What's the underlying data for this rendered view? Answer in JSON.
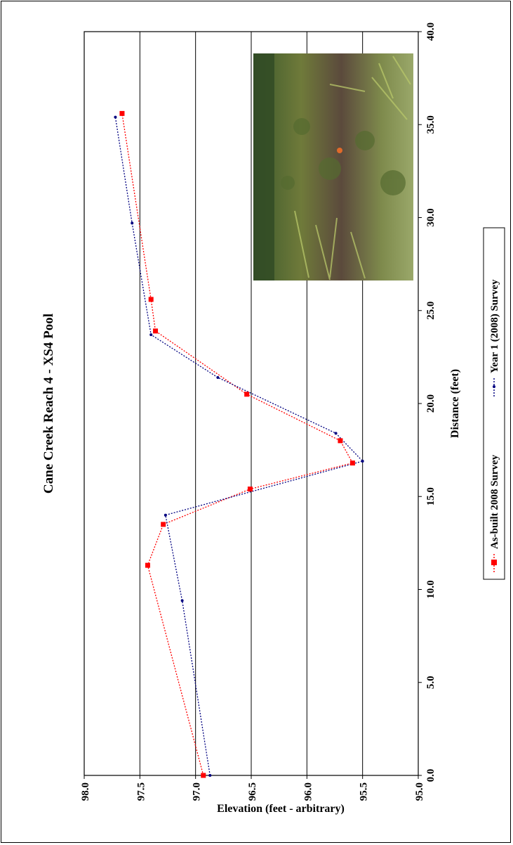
{
  "chart_data": {
    "type": "line",
    "orientation": "rotated-90-ccw",
    "title": "Cane Creek Reach 4 - XS4 Pool",
    "xlabel": "Distance (feet)",
    "ylabel": "Elevation (feet - arbitrary)",
    "xlim": [
      0,
      40
    ],
    "ylim": [
      95,
      98
    ],
    "x_ticks": [
      "0.0",
      "5.0",
      "10.0",
      "15.0",
      "20.0",
      "25.0",
      "30.0",
      "35.0",
      "40.0"
    ],
    "y_ticks": [
      "95.0",
      "95.5",
      "96.0",
      "96.5",
      "97.0",
      "97.5",
      "98.0"
    ],
    "grid": "horizontal",
    "legend_position": "bottom",
    "series": [
      {
        "name": "As-built 2008 Survey",
        "color": "#ff0000",
        "marker": "square",
        "line_style": "dotted",
        "points": [
          [
            0.0,
            96.93
          ],
          [
            11.3,
            97.43
          ],
          [
            13.5,
            97.29
          ],
          [
            15.4,
            96.51
          ],
          [
            16.8,
            95.59
          ],
          [
            18.0,
            95.7
          ],
          [
            20.5,
            96.54
          ],
          [
            23.9,
            97.36
          ],
          [
            25.6,
            97.4
          ],
          [
            35.6,
            97.66
          ]
        ]
      },
      {
        "name": "Year 1 (2008) Survey",
        "color": "#000080",
        "marker": "dot",
        "line_style": "dotted",
        "points": [
          [
            0.0,
            96.87
          ],
          [
            9.4,
            97.12
          ],
          [
            14.0,
            97.27
          ],
          [
            16.9,
            95.5
          ],
          [
            18.4,
            95.74
          ],
          [
            21.4,
            96.8
          ],
          [
            23.7,
            97.4
          ],
          [
            29.7,
            97.57
          ],
          [
            35.4,
            97.72
          ]
        ]
      }
    ]
  },
  "photo": {
    "icon": "vegetation-photo"
  }
}
